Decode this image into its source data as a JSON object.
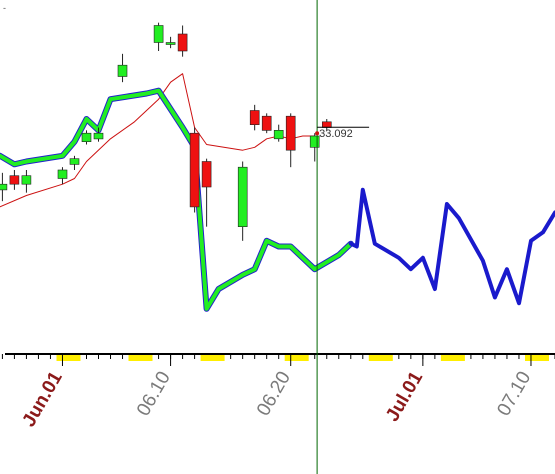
{
  "chart_data": {
    "type": "candlestick",
    "title": "",
    "xlabel": "",
    "ylabel": "",
    "corner_text": "-",
    "price_readout": "33.092",
    "x_tick_labels": [
      {
        "day": 1,
        "text": "Jun.01",
        "color": "#8b1a1a"
      },
      {
        "day": 10,
        "text": "06.10",
        "color": "#7a7a7a"
      },
      {
        "day": 20,
        "text": "06.20",
        "color": "#7a7a7a"
      },
      {
        "day": 31,
        "text": "Jul.01",
        "color": "#8b1a1a"
      },
      {
        "day": 40,
        "text": "07.10",
        "color": "#7a7a7a"
      }
    ],
    "x_range_days": [
      -4.2,
      42.0
    ],
    "y_range": [
      23.5,
      35.5
    ],
    "cursor_day": 22.2,
    "candles": [
      {
        "day": -4,
        "open": 28.8,
        "close": 29.0,
        "high": 29.4,
        "low": 28.4
      },
      {
        "day": -3,
        "open": 29.3,
        "close": 29.0,
        "high": 29.5,
        "low": 28.8
      },
      {
        "day": -2,
        "open": 29.0,
        "close": 29.3,
        "high": 29.5,
        "low": 28.7
      },
      {
        "day": 1,
        "open": 29.2,
        "close": 29.5,
        "high": 29.6,
        "low": 29.0
      },
      {
        "day": 2,
        "open": 29.7,
        "close": 29.9,
        "high": 30.0,
        "low": 29.5
      },
      {
        "day": 3,
        "open": 30.5,
        "close": 30.8,
        "high": 30.9,
        "low": 30.4
      },
      {
        "day": 4,
        "open": 30.6,
        "close": 30.8,
        "high": 31.0,
        "low": 30.5
      },
      {
        "day": 6,
        "open": 32.8,
        "close": 33.2,
        "high": 33.6,
        "low": 32.6
      },
      {
        "day": 9,
        "open": 34.0,
        "close": 34.6,
        "high": 34.7,
        "low": 33.7
      },
      {
        "day": 10,
        "open": 34.0,
        "close": 34.0,
        "high": 34.2,
        "low": 33.8
      },
      {
        "day": 11,
        "open": 34.3,
        "close": 33.7,
        "high": 34.6,
        "low": 33.5
      },
      {
        "day": 12,
        "open": 30.8,
        "close": 28.2,
        "high": 31.0,
        "low": 28.0
      },
      {
        "day": 13,
        "open": 29.8,
        "close": 28.9,
        "high": 29.9,
        "low": 27.5
      },
      {
        "day": 16,
        "open": 27.5,
        "close": 29.6,
        "high": 29.8,
        "low": 27.0
      },
      {
        "day": 17,
        "open": 31.6,
        "close": 31.1,
        "high": 31.8,
        "low": 30.9
      },
      {
        "day": 18,
        "open": 31.4,
        "close": 30.9,
        "high": 31.5,
        "low": 30.8
      },
      {
        "day": 19,
        "open": 30.6,
        "close": 30.9,
        "high": 31.1,
        "low": 30.5
      },
      {
        "day": 20,
        "open": 31.4,
        "close": 30.2,
        "high": 31.5,
        "low": 29.6
      },
      {
        "day": 22,
        "open": 30.3,
        "close": 30.7,
        "high": 30.8,
        "low": 29.8
      },
      {
        "day": 23,
        "open": 31.2,
        "close": 31.0,
        "high": 31.3,
        "low": 30.9
      }
    ],
    "series": [
      {
        "style": "thin",
        "color": "#cc1111",
        "points": [
          [
            -4.2,
            28.2
          ],
          [
            -2,
            28.6
          ],
          [
            1,
            29.0
          ],
          [
            2,
            29.2
          ],
          [
            3,
            29.8
          ],
          [
            5,
            30.6
          ],
          [
            7,
            31.2
          ],
          [
            9,
            32.0
          ],
          [
            10,
            32.6
          ],
          [
            11,
            32.9
          ],
          [
            12,
            31.0
          ],
          [
            13,
            30.4
          ],
          [
            16,
            30.2
          ],
          [
            17,
            30.3
          ],
          [
            18,
            30.6
          ],
          [
            19,
            30.7
          ],
          [
            20,
            30.6
          ],
          [
            21,
            30.7
          ],
          [
            22,
            30.7
          ]
        ]
      },
      {
        "style": "band",
        "color": "#2222cc",
        "points": [
          [
            -4.2,
            30.0
          ],
          [
            -3,
            29.7
          ],
          [
            -2,
            29.8
          ],
          [
            1,
            30.0
          ],
          [
            2,
            30.5
          ],
          [
            3,
            31.3
          ],
          [
            4,
            30.9
          ],
          [
            5,
            32.0
          ],
          [
            8,
            32.2
          ],
          [
            9,
            32.3
          ],
          [
            11,
            31.0
          ],
          [
            12,
            30.3
          ],
          [
            13,
            24.6
          ],
          [
            14,
            25.3
          ],
          [
            16,
            25.8
          ],
          [
            17,
            26.0
          ],
          [
            18,
            27.0
          ],
          [
            19,
            26.8
          ],
          [
            20,
            26.8
          ],
          [
            22,
            26.0
          ],
          [
            24,
            26.5
          ],
          [
            25,
            26.9
          ]
        ]
      },
      {
        "style": "bold",
        "color": "#22ee22",
        "points": [
          [
            -4.2,
            30.0
          ],
          [
            -3,
            29.7
          ],
          [
            -2,
            29.8
          ],
          [
            1,
            30.0
          ],
          [
            2,
            30.5
          ],
          [
            3,
            31.3
          ],
          [
            4,
            30.9
          ],
          [
            5,
            32.0
          ],
          [
            8,
            32.2
          ],
          [
            9,
            32.3
          ],
          [
            11,
            31.0
          ],
          [
            12,
            30.3
          ],
          [
            13,
            24.6
          ],
          [
            14,
            25.3
          ],
          [
            16,
            25.8
          ],
          [
            17,
            26.0
          ],
          [
            18,
            27.0
          ],
          [
            19,
            26.8
          ],
          [
            20,
            26.8
          ],
          [
            22,
            26.0
          ],
          [
            24,
            26.5
          ],
          [
            25,
            26.9
          ]
        ]
      },
      {
        "style": "bold",
        "color": "#1a1acc",
        "points": [
          [
            25,
            26.9
          ],
          [
            25.5,
            26.8
          ],
          [
            26,
            28.8
          ],
          [
            27,
            26.9
          ],
          [
            29,
            26.4
          ],
          [
            30,
            26.0
          ],
          [
            31,
            26.4
          ],
          [
            32,
            25.3
          ],
          [
            33,
            28.3
          ],
          [
            34,
            27.8
          ],
          [
            36,
            26.3
          ],
          [
            37,
            25.0
          ],
          [
            38,
            26.0
          ],
          [
            39,
            24.8
          ],
          [
            40,
            27.0
          ],
          [
            41,
            27.3
          ],
          [
            42,
            28.0
          ]
        ]
      }
    ],
    "volume_markers": [
      {
        "from": 1,
        "to": 2
      },
      {
        "from": 7,
        "to": 8
      },
      {
        "from": 13,
        "to": 14
      },
      {
        "from": 20,
        "to": 21
      },
      {
        "from": 27,
        "to": 28
      },
      {
        "from": 33,
        "to": 34
      },
      {
        "from": 40,
        "to": 41
      }
    ],
    "colors": {
      "up_body": "#22ee22",
      "down_body": "#ee1111",
      "wick": "#222222",
      "cursor": "#006600",
      "axis": "#000000",
      "volume_marker": "#ffee00"
    }
  }
}
